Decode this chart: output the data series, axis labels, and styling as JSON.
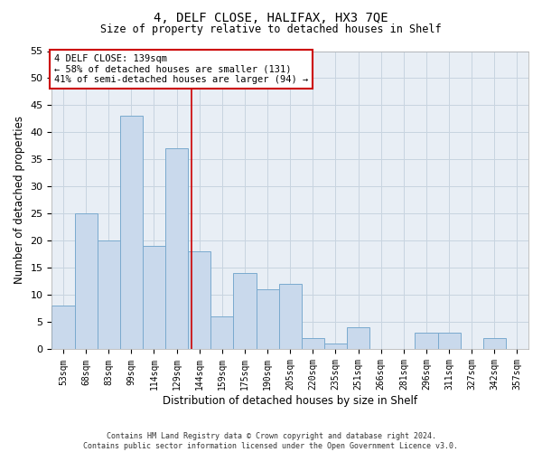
{
  "title": "4, DELF CLOSE, HALIFAX, HX3 7QE",
  "subtitle": "Size of property relative to detached houses in Shelf",
  "xlabel": "Distribution of detached houses by size in Shelf",
  "ylabel": "Number of detached properties",
  "categories": [
    "53sqm",
    "68sqm",
    "83sqm",
    "99sqm",
    "114sqm",
    "129sqm",
    "144sqm",
    "159sqm",
    "175sqm",
    "190sqm",
    "205sqm",
    "220sqm",
    "235sqm",
    "251sqm",
    "266sqm",
    "281sqm",
    "296sqm",
    "311sqm",
    "327sqm",
    "342sqm",
    "357sqm"
  ],
  "values": [
    8,
    25,
    20,
    43,
    19,
    37,
    18,
    6,
    14,
    11,
    12,
    2,
    1,
    4,
    0,
    0,
    3,
    3,
    0,
    2,
    0
  ],
  "bar_color": "#c9d9ec",
  "bar_edge_color": "#7aaace",
  "vline_position": 5.67,
  "vline_color": "#cc0000",
  "ylim": [
    0,
    55
  ],
  "yticks": [
    0,
    5,
    10,
    15,
    20,
    25,
    30,
    35,
    40,
    45,
    50,
    55
  ],
  "annotation_title": "4 DELF CLOSE: 139sqm",
  "annotation_line1": "← 58% of detached houses are smaller (131)",
  "annotation_line2": "41% of semi-detached houses are larger (94) →",
  "annotation_box_color": "#cc0000",
  "grid_color": "#c8d4e0",
  "background_color": "#e8eef5",
  "footnote1": "Contains HM Land Registry data © Crown copyright and database right 2024.",
  "footnote2": "Contains public sector information licensed under the Open Government Licence v3.0."
}
